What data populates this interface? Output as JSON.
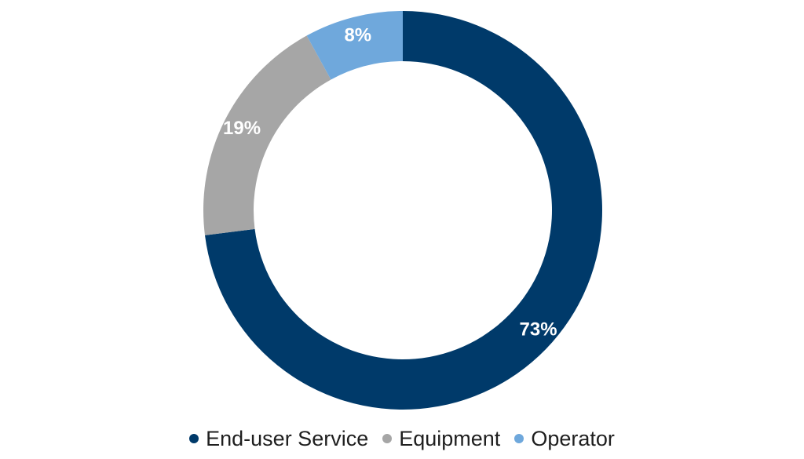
{
  "chart_data": {
    "type": "pie",
    "donut": true,
    "title": "",
    "series": [
      {
        "name": "",
        "categories": [
          "End-user Service",
          "Equipment",
          "Operator"
        ],
        "values": [
          73,
          19,
          8
        ],
        "labels": [
          "73%",
          "19%",
          "8%"
        ],
        "colors": [
          "#003A6A",
          "#A6A6A6",
          "#6FA8DC"
        ]
      }
    ],
    "legend": {
      "position": "bottom",
      "items": [
        {
          "label": "End-user Service",
          "color": "#003A6A"
        },
        {
          "label": "Equipment",
          "color": "#A6A6A6"
        },
        {
          "label": "Operator",
          "color": "#6FA8DC"
        }
      ]
    },
    "start_angle": "12 o'clock",
    "direction": "clockwise"
  }
}
